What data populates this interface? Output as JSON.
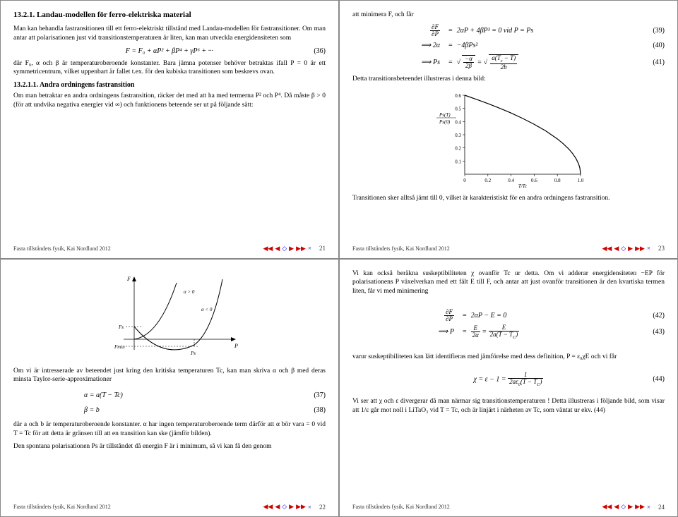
{
  "pages": {
    "p21": {
      "title": "13.2.1. Landau-modellen för ferro-elektriska material",
      "para1": "Man kan behandla fastransitionen till ett ferro-elektriskt tillstånd med Landau-modellen för fastransitioner. Om man antar att polarisationen just vid transitionstemperaturen är liten, kan man utveckla energidensiteten som",
      "eq36": "F = F₀ + αP² + βP⁴ + γP⁶ + ···",
      "eq36num": "(36)",
      "para2": "där F₀, α och β är temperaturoberoende konstanter. Bara jämna potenser behöver betraktas ifall P = 0 är ett symmetricentrum, vilket uppenbart är fallet t.ex. för den kubiska transitionen som beskrevs ovan.",
      "subtitle": "13.2.1.1. Andra ordningens fastransition",
      "para3": "Om man betraktar en andra ordningens fastransition, räcker det med att ha med termerna P² och P⁴. Då måste β > 0 (för att undvika negativa energier vid ∞) och funktionens beteende ser ut på följande sätt:",
      "pagenum": "21"
    },
    "p22": {
      "para1": "Om vi är intresserade av beteendet just kring den kritiska temperaturen Tc, kan man skriva α och β med deras minsta Taylor-serie-approximationer",
      "eq37": "α   =   a(T − Tc)",
      "eq37num": "(37)",
      "eq38": "β   =   b",
      "eq38num": "(38)",
      "para2": "där a och b är temperaturoberoende konstanter. α har ingen temperaturoberoende term därför att α bör vara = 0 vid T = Tc för att detta är gränsen till att en transition kan ske (jämför bilden).",
      "para3": "Den spontana polarisationen Ps är tillståndet då energin F är i minimum, så vi kan få den genom",
      "chart_labels": {
        "ylabel": "F",
        "fs": "Fs",
        "fmin": "Fmin",
        "ps": "Ps",
        "xlabel": "P",
        "ag0": "α > 0",
        "al0": "α < 0"
      },
      "pagenum": "22"
    },
    "p23": {
      "intro": "att minimera F, och får",
      "eq39lhs": "∂F/∂P",
      "eq39rhs": "2αP + 4βP³ = 0 vid P = Ps",
      "eq39num": "(39)",
      "eq40lhs": "⟹ 2α",
      "eq40rhs": "−4βPs²",
      "eq40num": "(40)",
      "eq41lhs": "⟹ Ps",
      "eq41num": "(41)",
      "para1": "Detta transitionsbeteendet illustreras i denna bild:",
      "para2": "Transitionen sker alltså jämt till 0, vilket är karakteristiskt för en andra ordningens fastransition.",
      "chart": {
        "ylabel": "Ps(T)/Ps(0)",
        "xlabel": "T/Tc",
        "xlim": [
          0,
          1.0
        ],
        "ylim": [
          0,
          0.6
        ],
        "xticks": [
          0,
          0.2,
          0.4,
          0.6,
          0.8,
          1.0
        ],
        "yticks": [
          0.1,
          0.2,
          0.3,
          0.4,
          0.5,
          0.6
        ],
        "curve_color": "#000000",
        "points": [
          [
            0.0,
            0.6
          ],
          [
            0.1,
            0.569
          ],
          [
            0.2,
            0.537
          ],
          [
            0.3,
            0.502
          ],
          [
            0.4,
            0.465
          ],
          [
            0.5,
            0.424
          ],
          [
            0.6,
            0.379
          ],
          [
            0.7,
            0.329
          ],
          [
            0.8,
            0.268
          ],
          [
            0.85,
            0.232
          ],
          [
            0.9,
            0.19
          ],
          [
            0.93,
            0.159
          ],
          [
            0.96,
            0.12
          ],
          [
            0.98,
            0.085
          ],
          [
            0.99,
            0.06
          ],
          [
            0.995,
            0.042
          ],
          [
            1.0,
            0.0
          ]
        ]
      },
      "pagenum": "23"
    },
    "p24": {
      "para1": "Vi kan också beräkna suskeptibiliteten χ ovanför Tc ur detta. Om vi adderar energidensiteten −EP för polarisationens P växelverkan med ett fält E till F, och antar att just ovanför transitionen är den kvartiska termen liten, får vi med minimering",
      "eq42lhs": "∂F/∂P",
      "eq42rhs": "2αP − E = 0",
      "eq42num": "(42)",
      "eq43lhs": "⟹ P",
      "eq43num": "(43)",
      "para2": "varur suskeptibiliteten kan lätt identifieras med jämförelse med dess definition, P = ε₀χE och vi får",
      "eq44num": "(44)",
      "para3": "Vi ser att χ och ε divergerar då man närmar sig transitionstemperaturen ! Detta illustreras i följande bild, som visar att 1/ε går mot noll i LiTaO₃ vid T = Tc, och är linjärt i närheten av Tc, som väntat ur ekv. (44)",
      "pagenum": "24"
    }
  },
  "footer": {
    "text": "Fasta tillståndets fysik, Kai Nordlund 2012",
    "nav_colors": {
      "red": "#cc0000",
      "blue": "#0000cc"
    }
  }
}
